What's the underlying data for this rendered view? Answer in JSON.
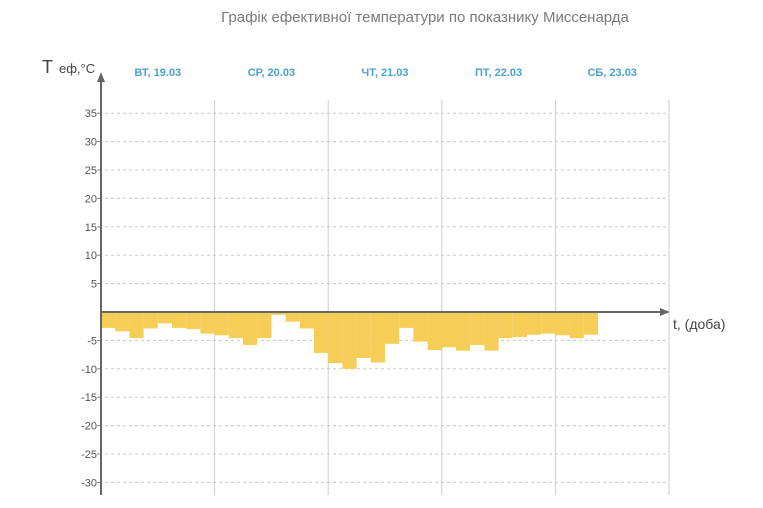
{
  "chart_data": {
    "type": "bar",
    "title": "Графік ефективної температури по показнику Миссенарда",
    "ylabel_main": "T",
    "ylabel_sub": "еф,°C",
    "xlabel": "t, (доба)",
    "ylim": [
      -32,
      37
    ],
    "yticks": [
      35,
      30,
      25,
      20,
      15,
      10,
      5,
      -5,
      -10,
      -15,
      -20,
      -25,
      -30
    ],
    "grid": true,
    "days": [
      "ВТ, 19.03",
      "СР, 20.03",
      "ЧТ, 21.03",
      "ПТ, 22.03",
      "СБ, 23.03"
    ],
    "bars_per_day": 8,
    "values": [
      -2.8,
      -3.4,
      -4.6,
      -2.9,
      -2.0,
      -2.8,
      -3.0,
      -3.8,
      -4.1,
      -4.6,
      -5.8,
      -4.6,
      -0.5,
      -1.7,
      -2.9,
      -7.2,
      -9.0,
      -10.0,
      -8.1,
      -8.9,
      -5.6,
      -2.8,
      -5.2,
      -6.7,
      -6.2,
      -6.8,
      -5.8,
      -6.8,
      -4.6,
      -4.4,
      -4.0,
      -3.8,
      -4.1,
      -4.6,
      -4.0
    ],
    "bar_color": "#f5cd57"
  }
}
